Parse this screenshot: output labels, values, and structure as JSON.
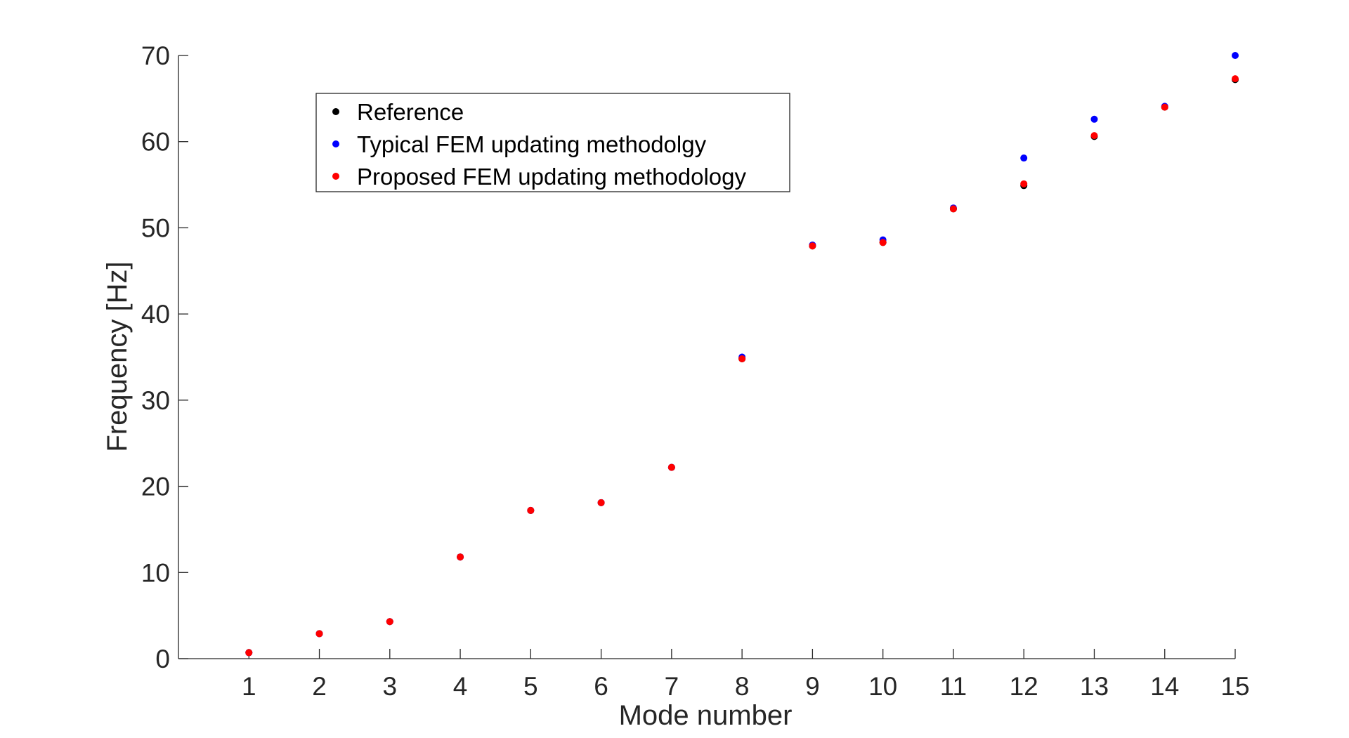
{
  "chart_data": {
    "type": "scatter",
    "xlabel": "Mode number",
    "ylabel": "Frequency [Hz]",
    "xlim": [
      0,
      15
    ],
    "ylim": [
      0,
      70
    ],
    "xticks": [
      1,
      2,
      3,
      4,
      5,
      6,
      7,
      8,
      9,
      10,
      11,
      12,
      13,
      14,
      15
    ],
    "yticks": [
      0,
      10,
      20,
      30,
      40,
      50,
      60,
      70
    ],
    "legend_placement": "top-left",
    "grid": false,
    "x": [
      1,
      2,
      3,
      4,
      5,
      6,
      7,
      8,
      9,
      10,
      11,
      12,
      13,
      14,
      15
    ],
    "series": [
      {
        "name": "Reference",
        "color": "#000000",
        "values": [
          0.7,
          2.9,
          4.3,
          11.8,
          17.2,
          18.1,
          22.2,
          34.8,
          47.9,
          48.3,
          52.2,
          54.9,
          60.6,
          64.0,
          67.2
        ]
      },
      {
        "name": "Typical FEM updating methodolgy",
        "color": "#0000ff",
        "values": [
          0.7,
          2.9,
          4.3,
          11.8,
          17.2,
          18.1,
          22.2,
          35.0,
          48.0,
          48.6,
          52.3,
          58.1,
          62.6,
          64.1,
          70.0
        ]
      },
      {
        "name": "Proposed FEM updating methodology",
        "color": "#ff0000",
        "values": [
          0.7,
          2.9,
          4.3,
          11.8,
          17.2,
          18.1,
          22.2,
          34.8,
          47.9,
          48.3,
          52.2,
          55.1,
          60.7,
          64.0,
          67.3
        ]
      }
    ]
  }
}
